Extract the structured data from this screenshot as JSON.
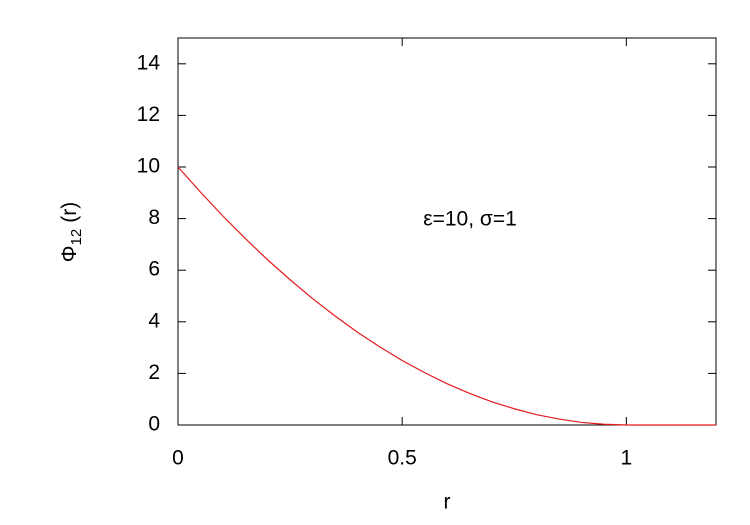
{
  "chart_data": {
    "type": "line",
    "ylabel": [
      "Φ",
      "12",
      "(r)"
    ],
    "xlabel": "r",
    "annotation": "ε=10, σ=1",
    "x": [
      0,
      0.05,
      0.1,
      0.15,
      0.2,
      0.25,
      0.3,
      0.35,
      0.4,
      0.45,
      0.5,
      0.55,
      0.6,
      0.65,
      0.7,
      0.75,
      0.8,
      0.85,
      0.9,
      0.95,
      1,
      1.05,
      1.1,
      1.15,
      1.2
    ],
    "series": [
      {
        "color": "#e41a1c",
        "values": [
          10,
          9.03,
          8.1,
          7.23,
          6.4,
          5.63,
          4.9,
          4.23,
          3.6,
          3.03,
          2.5,
          2.03,
          1.6,
          1.23,
          0.9,
          0.63,
          0.4,
          0.23,
          0.1,
          0.03,
          0,
          0,
          0,
          0,
          0
        ]
      }
    ],
    "xlim": [
      0,
      1.2
    ],
    "ylim": [
      0,
      15
    ],
    "xticks": [
      0,
      0.5,
      1
    ],
    "yticks": [
      0,
      2,
      4,
      6,
      8,
      10,
      12,
      14
    ],
    "grid": false
  }
}
